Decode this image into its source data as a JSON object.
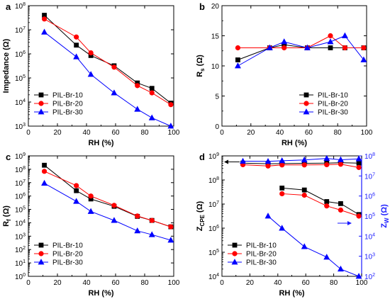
{
  "colors": {
    "s10": "#000000",
    "s20": "#ff0000",
    "s30": "#0000ff",
    "right_axis": "#1a1aff"
  },
  "chart_data": [
    {
      "panel": "a",
      "type": "line",
      "xlabel": "RH (%)",
      "ylabel": "Impedance (Ω)",
      "xlim": [
        0,
        100
      ],
      "xticks": [
        0,
        20,
        40,
        60,
        80,
        100
      ],
      "ylim": [
        1000,
        100000000
      ],
      "yscale": "log",
      "yticks": [
        1000,
        10000,
        100000,
        1000000,
        10000000,
        100000000
      ],
      "legend": "bottom-left",
      "series": [
        {
          "name": "PIL-Br-10",
          "marker": "square",
          "color": "#000000",
          "x": [
            11,
            33,
            43,
            59,
            75,
            85,
            98
          ],
          "y": [
            40000000,
            2300000,
            850000,
            320000,
            62000,
            37000,
            9000
          ]
        },
        {
          "name": "PIL-Br-20",
          "marker": "circle",
          "color": "#ff0000",
          "x": [
            11,
            33,
            43,
            59,
            75,
            85,
            98
          ],
          "y": [
            28000000,
            5000000,
            1100000,
            280000,
            48000,
            24000,
            7800
          ]
        },
        {
          "name": "PIL-Br-30",
          "marker": "triangle",
          "color": "#0000ff",
          "x": [
            11,
            33,
            43,
            59,
            75,
            85,
            98
          ],
          "y": [
            8000000,
            750000,
            140000,
            24000,
            5000,
            2200,
            1000
          ]
        }
      ]
    },
    {
      "panel": "b",
      "type": "line",
      "xlabel": "RH (%)",
      "ylabel": "Rs (Ω)",
      "xlim": [
        0,
        100
      ],
      "xticks": [
        0,
        20,
        40,
        60,
        80,
        100
      ],
      "ylim": [
        0,
        20
      ],
      "yscale": "linear",
      "yticks": [
        0,
        5,
        10,
        15,
        20
      ],
      "legend": "bottom-right",
      "series": [
        {
          "name": "PIL-Br-10",
          "marker": "square",
          "color": "#000000",
          "x": [
            11,
            33,
            43,
            59,
            75,
            85,
            98
          ],
          "y": [
            11,
            13,
            13.5,
            13,
            13,
            13,
            13
          ]
        },
        {
          "name": "PIL-Br-20",
          "marker": "circle",
          "color": "#ff0000",
          "x": [
            11,
            33,
            43,
            59,
            75,
            85,
            98
          ],
          "y": [
            13,
            13,
            13,
            13,
            15,
            13,
            13
          ]
        },
        {
          "name": "PIL-Br-30",
          "marker": "triangle",
          "color": "#0000ff",
          "x": [
            11,
            33,
            43,
            59,
            75,
            85,
            98
          ],
          "y": [
            10,
            13,
            14,
            13,
            14,
            15,
            11
          ]
        }
      ]
    },
    {
      "panel": "c",
      "type": "line",
      "xlabel": "RH (%)",
      "ylabel": "Rf (Ω)",
      "xlim": [
        0,
        100
      ],
      "xticks": [
        0,
        20,
        40,
        60,
        80,
        100
      ],
      "ylim": [
        1,
        1000000000
      ],
      "yscale": "log",
      "yticks": [
        1,
        10,
        100,
        1000,
        10000,
        100000,
        1000000,
        10000000,
        100000000,
        1000000000
      ],
      "legend": "bottom-left",
      "series": [
        {
          "name": "PIL-Br-10",
          "marker": "square",
          "color": "#000000",
          "x": [
            11,
            33,
            43,
            59,
            75,
            85,
            98
          ],
          "y": [
            200000000,
            2500000,
            600000,
            170000,
            30000,
            15000,
            5000
          ]
        },
        {
          "name": "PIL-Br-20",
          "marker": "circle",
          "color": "#ff0000",
          "x": [
            11,
            33,
            43,
            59,
            75,
            85,
            98
          ],
          "y": [
            70000000,
            6000000,
            1000000,
            200000,
            32000,
            15000,
            5000
          ]
        },
        {
          "name": "PIL-Br-30",
          "marker": "triangle",
          "color": "#0000ff",
          "x": [
            11,
            33,
            43,
            59,
            75,
            85,
            98
          ],
          "y": [
            9000000,
            400000,
            70000,
            15000,
            2500,
            1300,
            500
          ]
        }
      ]
    },
    {
      "panel": "d",
      "type": "line",
      "xlabel": "RH (%)",
      "ylabel": "ZCPE (Ω)",
      "ylabel_right": "ZW (Ω)",
      "xlim": [
        0,
        100
      ],
      "xticks": [
        0,
        20,
        40,
        60,
        80,
        100
      ],
      "ylim": [
        10000,
        1000000000
      ],
      "yscale": "log",
      "yticks": [
        10000,
        100000,
        1000000,
        10000000,
        100000000,
        1000000000
      ],
      "y2lim": [
        100,
        100000000
      ],
      "y2scale": "log",
      "y2ticks": [
        100,
        1000,
        10000,
        100000,
        1000000,
        10000000,
        100000000
      ],
      "legend": "bottom-left",
      "arrows": [
        {
          "direction": "left",
          "points_to": "left axis (ZCPE)"
        },
        {
          "direction": "right",
          "points_to": "right axis (ZW)"
        }
      ],
      "series": [
        {
          "name": "PIL-Br-10",
          "axis": "left",
          "marker": "square",
          "color": "#000000",
          "x": [
            15,
            33,
            43,
            59,
            75,
            85,
            98
          ],
          "y": [
            500000000,
            470000000,
            480000000,
            490000000,
            500000000,
            520000000,
            500000000
          ]
        },
        {
          "name": "PIL-Br-20",
          "axis": "left",
          "marker": "circle",
          "color": "#ff0000",
          "x": [
            15,
            33,
            43,
            59,
            75,
            85,
            98
          ],
          "y": [
            430000000,
            380000000,
            420000000,
            420000000,
            430000000,
            450000000,
            330000000
          ]
        },
        {
          "name": "PIL-Br-30",
          "axis": "left",
          "marker": "triangle",
          "color": "#0000ff",
          "x": [
            15,
            33,
            43,
            59,
            75,
            85,
            98
          ],
          "y": [
            600000000,
            590000000,
            630000000,
            680000000,
            780000000,
            690000000,
            750000000
          ]
        },
        {
          "name": "PIL-Br-10",
          "axis": "right",
          "marker": "square",
          "color": "#000000",
          "x": [
            43,
            59,
            75,
            85,
            98
          ],
          "y": [
            2500000,
            2000000,
            530000,
            420000,
            120000
          ]
        },
        {
          "name": "PIL-Br-20",
          "axis": "right",
          "marker": "circle",
          "color": "#ff0000",
          "x": [
            43,
            59,
            75,
            85,
            98
          ],
          "y": [
            1300000,
            1100000,
            320000,
            200000,
            100000
          ]
        },
        {
          "name": "PIL-Br-30",
          "axis": "right",
          "marker": "triangle",
          "color": "#0000ff",
          "x": [
            33,
            43,
            59,
            75,
            85,
            98
          ],
          "y": [
            100000,
            25000,
            3000,
            900,
            230,
            100
          ]
        }
      ]
    }
  ]
}
